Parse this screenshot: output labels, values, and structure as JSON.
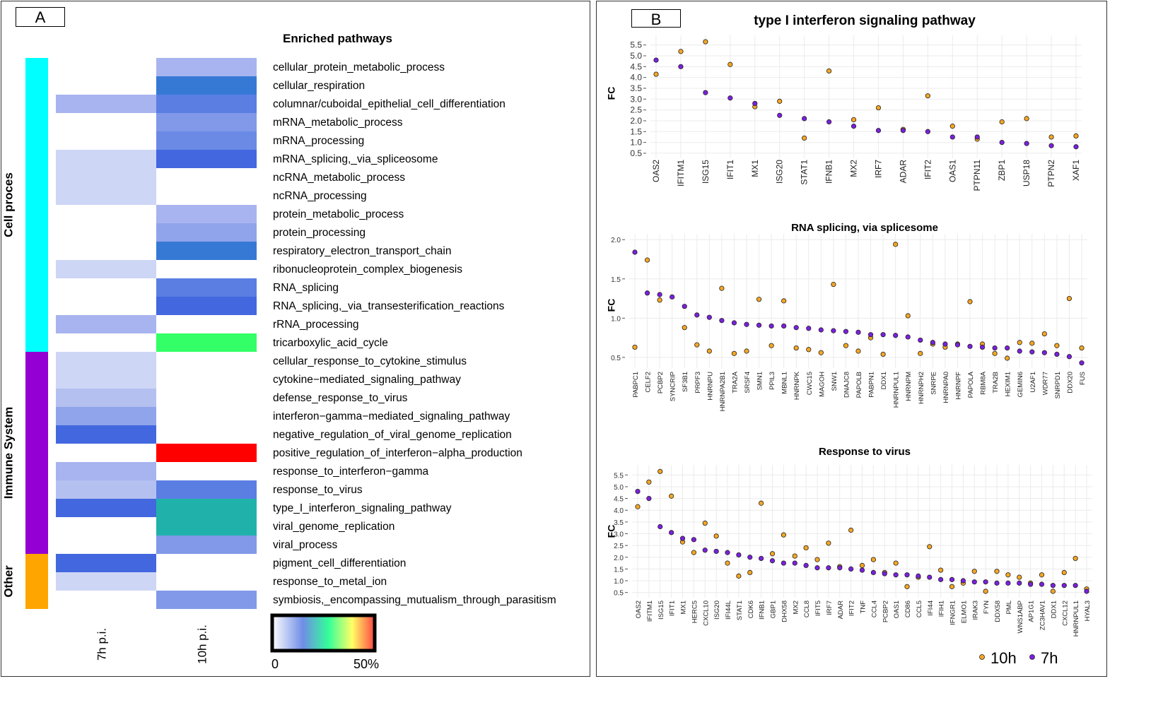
{
  "panel_a": {
    "label": "A",
    "title": "Enriched pathways",
    "columns": [
      "7h p.i.",
      "10h p.i."
    ],
    "scale_min_label": "0",
    "scale_max_label": "50%",
    "groups": [
      {
        "name": "Cell proces",
        "color": "#00ffff",
        "start": 0,
        "end": 15
      },
      {
        "name": "Immune System",
        "color": "#9400d3",
        "start": 16,
        "end": 26
      },
      {
        "name": "Other",
        "color": "#ffa500",
        "start": 27,
        "end": 29
      }
    ],
    "rows": [
      {
        "name": "cellular_protein_metabolic_process",
        "c7": null,
        "c10": "#a8b4ef"
      },
      {
        "name": "cellular_respiration",
        "c7": null,
        "c10": "#3679d5"
      },
      {
        "name": "columnar/cuboidal_epithelial_cell_differentiation",
        "c7": "#a8b4ef",
        "c10": "#5b7ee3"
      },
      {
        "name": "mRNA_metabolic_process",
        "c7": null,
        "c10": "#8199e8"
      },
      {
        "name": "mRNA_processing",
        "c7": null,
        "c10": "#6a8ae5"
      },
      {
        "name": "mRNA_splicing,_via_spliceosome",
        "c7": "#cdd6f5",
        "c10": "#4267df"
      },
      {
        "name": "ncRNA_metabolic_process",
        "c7": "#cdd6f5",
        "c10": null
      },
      {
        "name": "ncRNA_processing",
        "c7": "#cdd6f5",
        "c10": null
      },
      {
        "name": "protein_metabolic_process",
        "c7": null,
        "c10": "#a8b4ef"
      },
      {
        "name": "protein_processing",
        "c7": null,
        "c10": "#8fa4ea"
      },
      {
        "name": "respiratory_electron_transport_chain",
        "c7": null,
        "c10": "#3679d5"
      },
      {
        "name": "ribonucleoprotein_complex_biogenesis",
        "c7": "#cdd6f5",
        "c10": null
      },
      {
        "name": "RNA_splicing",
        "c7": null,
        "c10": "#5b7ee3"
      },
      {
        "name": "RNA_splicing,_via_transesterification_reactions",
        "c7": null,
        "c10": "#4267df"
      },
      {
        "name": "rRNA_processing",
        "c7": "#a8b4ef",
        "c10": null
      },
      {
        "name": "tricarboxylic_acid_cycle",
        "c7": null,
        "c10": "#33ff66"
      },
      {
        "name": "cellular_response_to_cytokine_stimulus",
        "c7": "#cdd6f5",
        "c10": null
      },
      {
        "name": "cytokine−mediated_signaling_pathway",
        "c7": "#cdd6f5",
        "c10": null
      },
      {
        "name": "defense_response_to_virus",
        "c7": "#b4c0f0",
        "c10": null
      },
      {
        "name": "interferon−gamma−mediated_signaling_pathway",
        "c7": "#8fa4ea",
        "c10": null
      },
      {
        "name": "negative_regulation_of_viral_genome_replication",
        "c7": "#4267df",
        "c10": null
      },
      {
        "name": "positive_regulation_of_interferon−alpha_production",
        "c7": null,
        "c10": "#ff0000"
      },
      {
        "name": "response_to_interferon−gamma",
        "c7": "#a8b4ef",
        "c10": null
      },
      {
        "name": "response_to_virus",
        "c7": "#b4c0f0",
        "c10": "#5b7ee3"
      },
      {
        "name": "type_I_interferon_signaling_pathway",
        "c7": "#4267df",
        "c10": "#20b2aa"
      },
      {
        "name": "viral_genome_replication",
        "c7": null,
        "c10": "#20b2aa"
      },
      {
        "name": "viral_process",
        "c7": null,
        "c10": "#8199e8"
      },
      {
        "name": "pigment_cell_differentiation",
        "c7": "#4267df",
        "c10": null
      },
      {
        "name": "response_to_metal_ion",
        "c7": "#cdd6f5",
        "c10": null
      },
      {
        "name": "symbiosis,_encompassing_mutualism_through_parasitism",
        "c7": null,
        "c10": "#8199e8"
      }
    ]
  },
  "panel_b": {
    "label": "B",
    "legend": {
      "label_10h": "10h",
      "label_7h": "7h",
      "color_10h": "#f5a623",
      "color_7h": "#7b1fe0"
    }
  },
  "chart_data": [
    {
      "type": "scatter",
      "title": "type I interferon signaling pathway",
      "ylabel": "FC",
      "ylim": [
        0.4,
        5.75
      ],
      "yticks": [
        0.5,
        1.0,
        1.5,
        2.0,
        2.5,
        3.0,
        3.5,
        4.0,
        4.5,
        5.0,
        5.5
      ],
      "categories": [
        "OAS2",
        "IFITM1",
        "ISG15",
        "IFIT1",
        "MX1",
        "ISG20",
        "STAT1",
        "IFNB1",
        "MX2",
        "IRF7",
        "ADAR",
        "IFIT2",
        "OAS1",
        "PTPN11",
        "ZBP1",
        "USP18",
        "PTPN2",
        "XAF1"
      ],
      "series": [
        {
          "name": "10h",
          "values": [
            4.15,
            5.2,
            5.65,
            4.6,
            2.65,
            2.9,
            1.2,
            4.3,
            2.05,
            2.6,
            1.6,
            3.15,
            1.75,
            1.15,
            1.95,
            2.1,
            1.25,
            1.3
          ]
        },
        {
          "name": "7h",
          "values": [
            4.8,
            4.5,
            3.3,
            3.05,
            2.8,
            2.25,
            2.1,
            1.95,
            1.75,
            1.55,
            1.55,
            1.5,
            1.25,
            1.25,
            1.0,
            0.95,
            0.85,
            0.8
          ]
        }
      ]
    },
    {
      "type": "scatter",
      "title": "RNA splicing, via splicesome",
      "ylabel": "FC",
      "ylim": [
        0.4,
        2.02
      ],
      "yticks": [
        0.5,
        1.0,
        1.5,
        2.0
      ],
      "categories": [
        "PABPC1",
        "CELF2",
        "PCBP2",
        "SYNCRIP",
        "SF3B1",
        "PRPF3",
        "HNRNPU",
        "HNRNPA2B1",
        "TRA2A",
        "SRSF4",
        "SMN1",
        "PPIL3",
        "MBNL1",
        "HNRNPK",
        "CWC15",
        "MAGOH",
        "SNW1",
        "DNAJC8",
        "PAPOLB",
        "PABPN1",
        "DDX1",
        "HNRNPUL1",
        "HNRNPM",
        "HNRNPH2",
        "SNRPE",
        "HNRNPA0",
        "HNRNPF",
        "PAPOLA",
        "RBM8A",
        "TRA2B",
        "HEXIM1",
        "GEMIN6",
        "U2AF1",
        "WDR77",
        "SNRPD1",
        "DDX20",
        "FUS"
      ],
      "series": [
        {
          "name": "10h",
          "values": [
            0.63,
            1.74,
            1.23,
            null,
            0.88,
            0.66,
            0.58,
            1.38,
            0.55,
            0.58,
            1.24,
            0.65,
            1.22,
            0.62,
            0.6,
            0.56,
            1.43,
            0.65,
            0.58,
            0.75,
            0.54,
            1.94,
            1.03,
            0.55,
            0.67,
            0.63,
            0.67,
            1.21,
            0.67,
            0.55,
            0.49,
            0.69,
            0.68,
            0.8,
            0.65,
            1.25,
            0.62
          ]
        },
        {
          "name": "7h",
          "values": [
            1.84,
            1.32,
            1.3,
            1.27,
            1.15,
            1.04,
            1.01,
            0.97,
            0.94,
            0.92,
            0.91,
            0.9,
            0.9,
            0.88,
            0.87,
            0.85,
            0.84,
            0.83,
            0.82,
            0.79,
            0.79,
            0.78,
            0.76,
            0.72,
            0.69,
            0.67,
            0.66,
            0.64,
            0.63,
            0.62,
            0.62,
            0.58,
            0.57,
            0.56,
            0.54,
            0.51,
            0.43
          ]
        }
      ]
    },
    {
      "type": "scatter",
      "title": "Response to virus",
      "ylabel": "FC",
      "ylim": [
        0.4,
        5.75
      ],
      "yticks": [
        0.5,
        1.0,
        1.5,
        2.0,
        2.5,
        3.0,
        3.5,
        4.0,
        4.5,
        5.0,
        5.5
      ],
      "categories": [
        "OAS2",
        "IFITM1",
        "ISG15",
        "IFIT1",
        "MX1",
        "HERC5",
        "CXCL10",
        "ISG20",
        "IFI44L",
        "STAT1",
        "CDK6",
        "IFNB1",
        "GBP1",
        "DHX58",
        "MX2",
        "CCL8",
        "IFIT5",
        "IRF7",
        "ADAR",
        "IFIT2",
        "TNF",
        "CCL4",
        "PCBP2",
        "OAS1",
        "CD86",
        "CCL5",
        "IFI44",
        "IFIH1",
        "IFNGR1",
        "ELMO1",
        "IRAK3",
        "FYN",
        "DDX58",
        "PML",
        "WNS1ABP",
        "AP1G1",
        "ZC3HAV1",
        "DDX1",
        "CXCL12",
        "HNRNPUL1",
        "HYAL3"
      ],
      "series": [
        {
          "name": "10h",
          "values": [
            4.15,
            5.2,
            5.65,
            4.6,
            2.65,
            2.2,
            3.45,
            2.9,
            1.75,
            1.2,
            1.35,
            4.3,
            2.15,
            2.95,
            2.05,
            2.4,
            1.9,
            2.6,
            1.6,
            3.15,
            1.65,
            1.9,
            1.35,
            1.75,
            0.75,
            1.15,
            2.45,
            1.45,
            0.75,
            0.9,
            1.4,
            0.55,
            1.4,
            1.25,
            1.15,
            0.9,
            1.25,
            0.55,
            1.35,
            1.95,
            0.65
          ]
        },
        {
          "name": "7h",
          "values": [
            4.8,
            4.5,
            3.3,
            3.05,
            2.8,
            2.75,
            2.3,
            2.25,
            2.2,
            2.1,
            2.0,
            1.95,
            1.85,
            1.75,
            1.75,
            1.65,
            1.55,
            1.55,
            1.55,
            1.5,
            1.45,
            1.35,
            1.3,
            1.25,
            1.25,
            1.2,
            1.15,
            1.05,
            1.05,
            1.0,
            0.95,
            0.95,
            0.9,
            0.9,
            0.9,
            0.85,
            0.85,
            0.8,
            0.8,
            0.8,
            0.55
          ]
        }
      ]
    }
  ]
}
